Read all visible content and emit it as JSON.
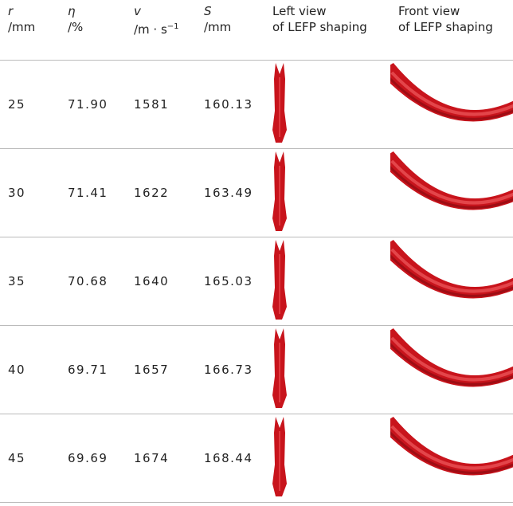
{
  "table": {
    "headers": [
      {
        "symbol": "r",
        "unit": "/mm"
      },
      {
        "symbol": "η",
        "unit": "/%"
      },
      {
        "symbol": "v",
        "unit": "/m · s",
        "unit_sup": "−1"
      },
      {
        "symbol": "S",
        "unit": "/mm"
      },
      {
        "line1": "Left view",
        "line2": "of LEFP shaping"
      },
      {
        "line1": "Front view",
        "line2": "of LEFP shaping"
      }
    ],
    "rows": [
      [
        "25",
        "71.90",
        "1581",
        "160.13"
      ],
      [
        "30",
        "71.41",
        "1622",
        "163.49"
      ],
      [
        "35",
        "70.68",
        "1640",
        "165.03"
      ],
      [
        "40",
        "69.71",
        "1657",
        "166.73"
      ],
      [
        "45",
        "69.69",
        "1674",
        "168.44"
      ]
    ]
  }
}
